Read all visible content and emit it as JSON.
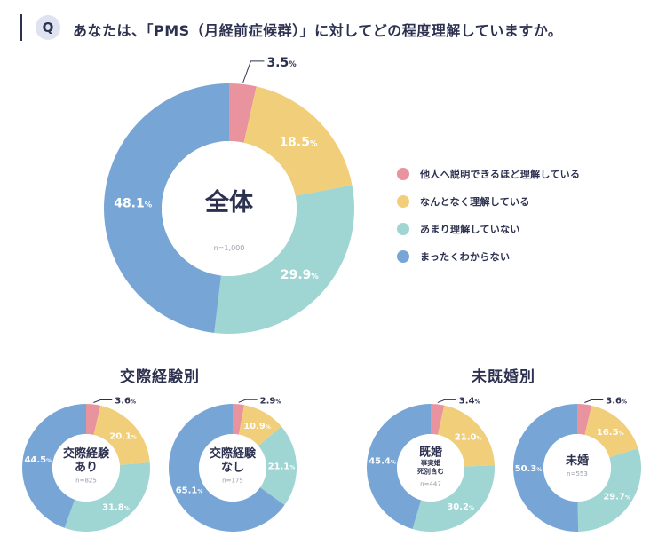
{
  "header": {
    "badge": "Q",
    "question": "あなたは、「PMS（月経前症候群）」に対してどの程度理解していますか。"
  },
  "colors": {
    "pink": "#e8939d",
    "yellow": "#f1ce79",
    "teal": "#9fd5d3",
    "blue": "#77a6d6",
    "text": "#2d3150"
  },
  "legend": [
    {
      "label": "他人へ説明できるほど理解している",
      "color": "#e8939d"
    },
    {
      "label": "なんとなく理解している",
      "color": "#f1ce79"
    },
    {
      "label": "あまり理解していない",
      "color": "#9fd5d3"
    },
    {
      "label": "まったくわからない",
      "color": "#77a6d6"
    }
  ],
  "groups": {
    "left_title": "交際経験別",
    "right_title": "未既婚別"
  },
  "chart_data": [
    {
      "type": "pie",
      "title": "全体",
      "n_label": "n=1,000",
      "categories": [
        "他人へ説明できるほど理解している",
        "なんとなく理解している",
        "あまり理解していない",
        "まったくわからない"
      ],
      "values": [
        3.5,
        18.5,
        29.9,
        48.1
      ],
      "value_labels": [
        "3.5",
        "18.5",
        "29.9",
        "48.1"
      ],
      "unit": "%"
    },
    {
      "type": "pie",
      "title": "交際経験あり",
      "title_lines": [
        "交際経験",
        "あり"
      ],
      "n_label": "n=825",
      "categories": [
        "他人へ説明できるほど理解している",
        "なんとなく理解している",
        "あまり理解していない",
        "まったくわからない"
      ],
      "values": [
        3.6,
        20.1,
        31.8,
        44.5
      ],
      "value_labels": [
        "3.6",
        "20.1",
        "31.8",
        "44.5"
      ],
      "unit": "%"
    },
    {
      "type": "pie",
      "title": "交際経験なし",
      "title_lines": [
        "交際経験",
        "なし"
      ],
      "n_label": "n=175",
      "categories": [
        "他人へ説明できるほど理解している",
        "なんとなく理解している",
        "あまり理解していない",
        "まったくわからない"
      ],
      "values": [
        2.9,
        10.9,
        21.1,
        65.1
      ],
      "value_labels": [
        "2.9",
        "10.9",
        "21.1",
        "65.1"
      ],
      "unit": "%"
    },
    {
      "type": "pie",
      "title": "既婚",
      "title_lines": [
        "既婚"
      ],
      "subtitle_lines": [
        "事実婚",
        "死別含む"
      ],
      "n_label": "n=447",
      "categories": [
        "他人へ説明できるほど理解している",
        "なんとなく理解している",
        "あまり理解していない",
        "まったくわからない"
      ],
      "values": [
        3.4,
        21.0,
        30.2,
        45.4
      ],
      "value_labels": [
        "3.4",
        "21.0",
        "30.2",
        "45.4"
      ],
      "unit": "%"
    },
    {
      "type": "pie",
      "title": "未婚",
      "title_lines": [
        "未婚"
      ],
      "n_label": "n=553",
      "categories": [
        "他人へ説明できるほど理解している",
        "なんとなく理解している",
        "あまり理解していない",
        "まったくわからない"
      ],
      "values": [
        3.6,
        16.5,
        29.7,
        50.3
      ],
      "value_labels": [
        "3.6",
        "16.5",
        "29.7",
        "50.3"
      ],
      "unit": "%"
    }
  ]
}
